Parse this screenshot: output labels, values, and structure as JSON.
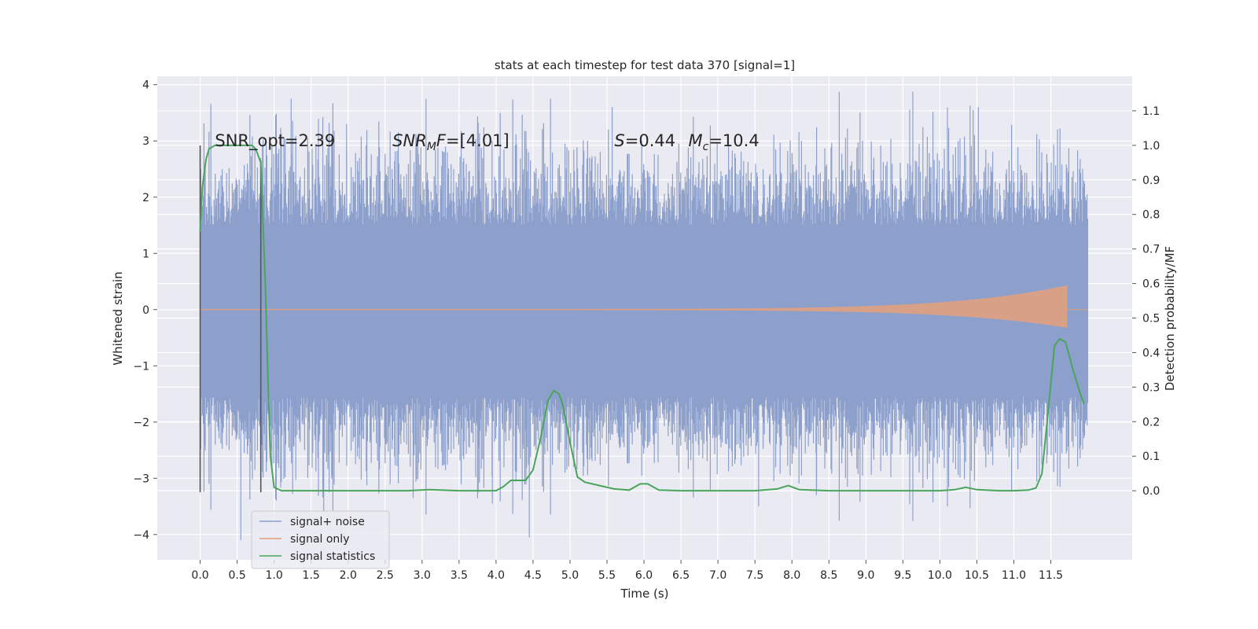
{
  "chart_data": {
    "type": "line",
    "title": "stats at each timestep for test data 370 [signal=1]",
    "xlabel": "Time (s)",
    "ylabel": "Whitened strain",
    "y2label": "Detection probability/MF",
    "xlim": [
      -0.58,
      12.6
    ],
    "ylim": [
      -4.45,
      4.15
    ],
    "y2lim": [
      -0.2,
      1.2
    ],
    "x_ticks": [
      0.0,
      0.5,
      1.0,
      1.5,
      2.0,
      2.5,
      3.0,
      3.5,
      4.0,
      4.5,
      5.0,
      5.5,
      6.0,
      6.5,
      7.0,
      7.5,
      8.0,
      8.5,
      9.0,
      9.5,
      10.0,
      10.5,
      11.0,
      11.5
    ],
    "x_tick_labels": [
      "0.0",
      "0.5",
      "1.0",
      "1.5",
      "2.0",
      "2.5",
      "3.0",
      "3.5",
      "4.0",
      "4.5",
      "5.0",
      "5.5",
      "6.0",
      "6.5",
      "7.0",
      "7.5",
      "8.0",
      "8.5",
      "9.0",
      "9.5",
      "10.0",
      "10.5",
      "11.0",
      "11.5"
    ],
    "y_ticks": [
      -4,
      -3,
      -2,
      -1,
      0,
      1,
      2,
      3,
      4
    ],
    "y_tick_labels": [
      "−4",
      "−3",
      "−2",
      "−1",
      "0",
      "1",
      "2",
      "3",
      "4"
    ],
    "y2_ticks": [
      0.0,
      0.1,
      0.2,
      0.3,
      0.4,
      0.5,
      0.6,
      0.7,
      0.8,
      0.9,
      1.0,
      1.1
    ],
    "y2_tick_labels": [
      "0.0",
      "0.1",
      "0.2",
      "0.3",
      "0.4",
      "0.5",
      "0.6",
      "0.7",
      "0.8",
      "0.9",
      "1.0",
      "1.1"
    ],
    "grid": true,
    "legend_position": "lower-left",
    "annotations": [
      {
        "id": "snr-opt",
        "x": 0.2,
        "y": 3.0,
        "parts": [
          {
            "text": "SNR_opt=2.39",
            "italic": false
          }
        ]
      },
      {
        "id": "snr-mf",
        "x": 2.6,
        "y": 3.0,
        "parts": [
          {
            "text": "SNR",
            "italic": true
          },
          {
            "text": "M",
            "italic": true,
            "sub": true
          },
          {
            "text": "F",
            "italic": true
          },
          {
            "text": "=[4.01]",
            "italic": false
          }
        ]
      },
      {
        "id": "spin",
        "x": 5.6,
        "y": 3.0,
        "parts": [
          {
            "text": "S",
            "italic": true
          },
          {
            "text": "=0.44",
            "italic": false
          }
        ]
      },
      {
        "id": "chirp-mass",
        "x": 6.6,
        "y": 3.0,
        "parts": [
          {
            "text": "M",
            "italic": true
          },
          {
            "text": "c",
            "italic": true,
            "sub": true
          },
          {
            "text": "=10.4",
            "italic": false
          }
        ]
      }
    ],
    "vertical_markers": [
      {
        "name": "window-start",
        "x": 0.0,
        "ylim": [
          -3.25,
          2.92
        ]
      },
      {
        "name": "window-end",
        "x": 0.82,
        "ylim": [
          -3.25,
          2.65
        ]
      }
    ],
    "series": [
      {
        "name": "signal+ noise",
        "axis": "left",
        "color": "#8da0cb",
        "type": "noise",
        "x_range": [
          0.0,
          12.0
        ],
        "core_amplitude": 1.5,
        "peaks": [
          {
            "x": 1.23,
            "y": 3.75
          },
          {
            "x": 0.55,
            "y": -4.1
          },
          {
            "x": 1.67,
            "y": -3.6
          },
          {
            "x": 4.45,
            "y": -4.05
          },
          {
            "x": 5.57,
            "y": 3.6
          },
          {
            "x": 10.45,
            "y": 3.55
          },
          {
            "x": 10.52,
            "y": 3.6
          },
          {
            "x": 7.55,
            "y": -3.5
          },
          {
            "x": 1.98,
            "y": 3.3
          },
          {
            "x": 8.33,
            "y": -3.3
          },
          {
            "x": 3.95,
            "y": -3.45
          },
          {
            "x": 2.88,
            "y": -3.35
          }
        ]
      },
      {
        "name": "signal only",
        "axis": "left",
        "color": "#e0a080",
        "type": "chirp",
        "x_range": [
          0.0,
          11.72
        ],
        "peak_amplitude": 0.42
      },
      {
        "name": "signal statistics",
        "axis": "right",
        "color": "#4aa55c",
        "x": [
          0.0,
          0.03,
          0.08,
          0.12,
          0.2,
          0.3,
          0.5,
          0.7,
          0.75,
          0.82,
          0.88,
          0.92,
          0.95,
          1.0,
          1.1,
          1.5,
          2.0,
          2.5,
          2.8,
          3.1,
          3.5,
          4.0,
          4.1,
          4.2,
          4.3,
          4.4,
          4.5,
          4.6,
          4.7,
          4.78,
          4.85,
          4.9,
          5.0,
          5.1,
          5.2,
          5.4,
          5.6,
          5.8,
          5.95,
          6.05,
          6.2,
          6.5,
          7.0,
          7.5,
          7.8,
          7.95,
          8.1,
          8.5,
          9.0,
          9.5,
          10.0,
          10.2,
          10.35,
          10.5,
          10.8,
          11.0,
          11.2,
          11.3,
          11.38,
          11.45,
          11.55,
          11.62,
          11.7,
          11.8,
          11.9,
          11.95
        ],
        "y": [
          0.75,
          0.88,
          0.96,
          0.99,
          1.0,
          1.0,
          1.0,
          1.0,
          0.99,
          0.95,
          0.6,
          0.3,
          0.1,
          0.01,
          0.0,
          0.0,
          0.0,
          0.0,
          0.0,
          0.003,
          0.0,
          0.0,
          0.012,
          0.03,
          0.03,
          0.03,
          0.06,
          0.15,
          0.26,
          0.29,
          0.28,
          0.25,
          0.14,
          0.04,
          0.025,
          0.015,
          0.005,
          0.002,
          0.02,
          0.02,
          0.002,
          0.0,
          0.0,
          0.0,
          0.005,
          0.015,
          0.003,
          0.0,
          0.0,
          0.0,
          0.0,
          0.003,
          0.01,
          0.003,
          0.0,
          0.0,
          0.002,
          0.008,
          0.05,
          0.2,
          0.42,
          0.44,
          0.43,
          0.35,
          0.28,
          0.25
        ]
      }
    ]
  }
}
